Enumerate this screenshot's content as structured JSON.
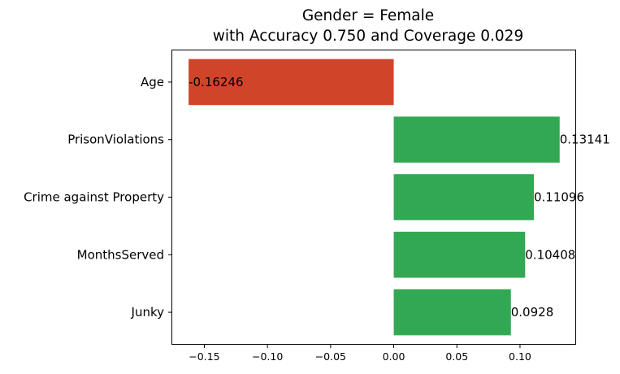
{
  "chart_data": {
    "type": "bar",
    "orientation": "horizontal",
    "title_lines": [
      "Gender = Female",
      "with Accuracy 0.750 and Coverage 0.029"
    ],
    "xlabel": "",
    "ylabel": "",
    "categories": [
      "Age",
      "PrisonViolations",
      "Crime against Property",
      "MonthsServed",
      "Junky"
    ],
    "values": [
      -0.16246,
      0.13141,
      0.11096,
      0.10408,
      0.0928
    ],
    "value_labels": [
      "-0.16246",
      "0.13141",
      "0.11096",
      "0.10408",
      "0.0928"
    ],
    "xlim": [
      -0.1754,
      0.1438
    ],
    "x_ticks": [
      -0.15,
      -0.1,
      -0.05,
      0.0,
      0.05,
      0.1
    ],
    "x_tick_labels": [
      "−0.15",
      "−0.10",
      "−0.05",
      "0.00",
      "0.05",
      "0.10"
    ],
    "colors": {
      "negative": "#d0452a",
      "positive": "#33a853"
    },
    "grid": false,
    "legend": "none"
  }
}
